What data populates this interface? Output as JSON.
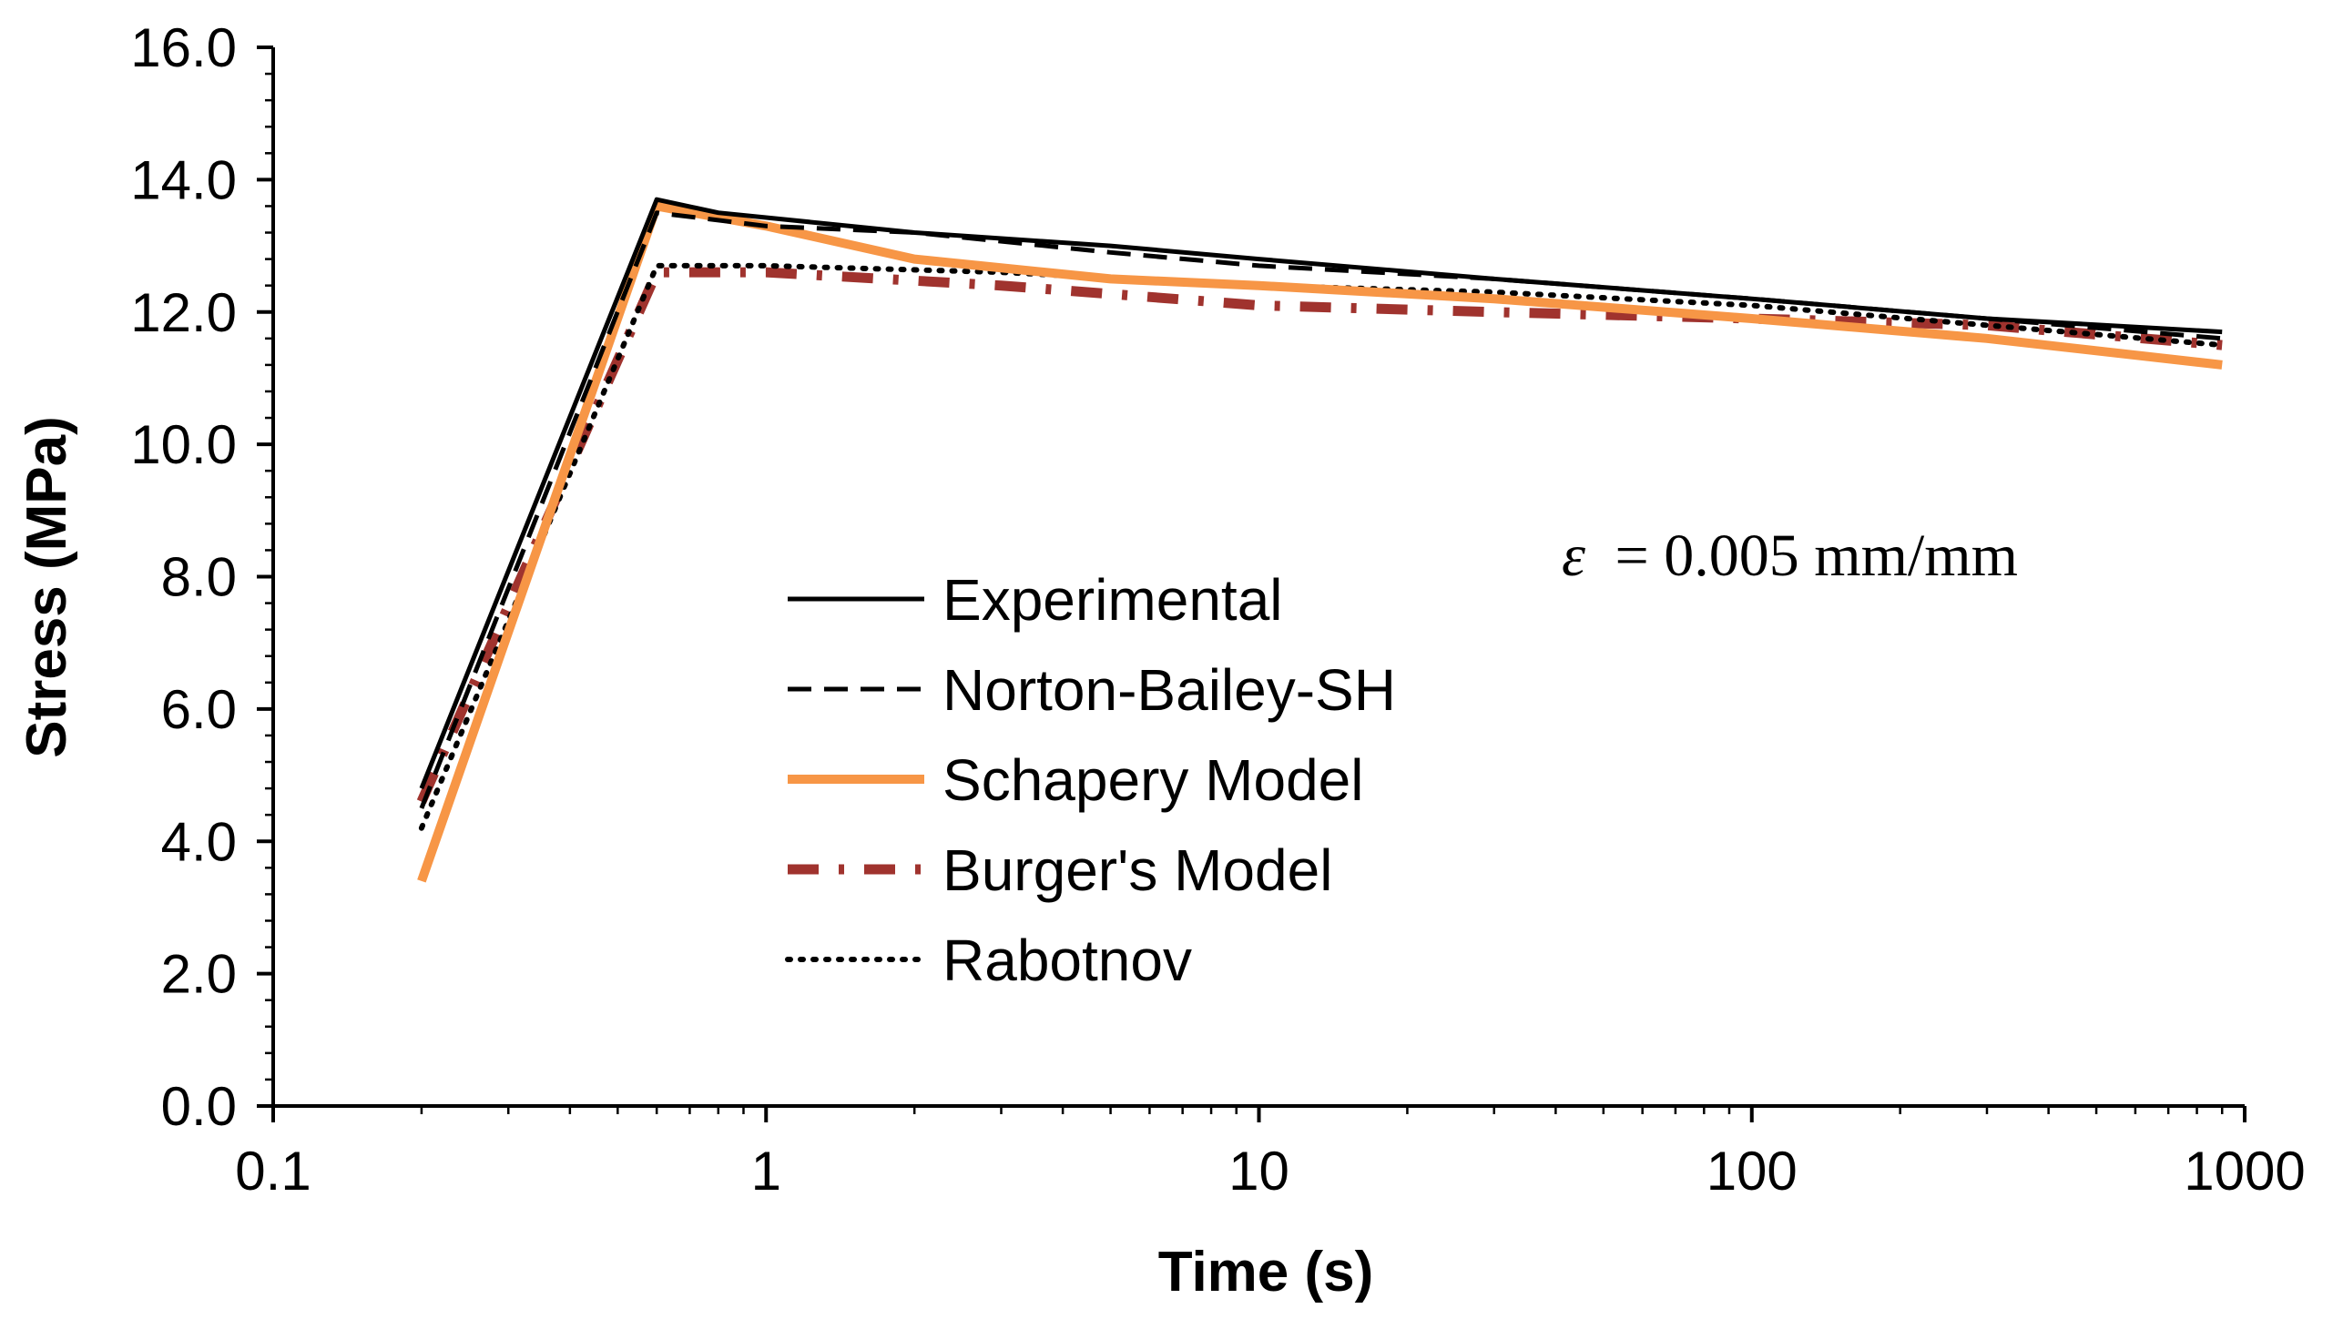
{
  "chart_data": {
    "type": "line",
    "x_scale": "log",
    "xlabel": "Time (s)",
    "ylabel": "Stress (MPa)",
    "xlim": [
      0.1,
      1000
    ],
    "ylim": [
      0,
      16
    ],
    "x_ticks": [
      0.1,
      1,
      10,
      100,
      1000
    ],
    "x_tick_labels": [
      "0.1",
      "1",
      "10",
      "100",
      "1000"
    ],
    "y_ticks": [
      0,
      2,
      4,
      6,
      8,
      10,
      12,
      14,
      16
    ],
    "y_tick_labels": [
      "0.0",
      "2.0",
      "4.0",
      "6.0",
      "8.0",
      "10.0",
      "12.0",
      "14.0",
      "16.0"
    ],
    "legend_position": "center-left",
    "annotation": {
      "symbol": "ε",
      "text": "= 0.005 mm/mm"
    },
    "series": [
      {
        "name": "Experimental",
        "style": "solid",
        "color": "#000000",
        "x": [
          0.2,
          0.6,
          0.8,
          2,
          5,
          10,
          30,
          100,
          300,
          900
        ],
        "y": [
          4.8,
          13.7,
          13.5,
          13.2,
          13.0,
          12.8,
          12.5,
          12.2,
          11.9,
          11.7
        ]
      },
      {
        "name": "Norton-Bailey-SH",
        "style": "dashed",
        "color": "#000000",
        "x": [
          0.2,
          0.6,
          1,
          2,
          5,
          10,
          30,
          100,
          300,
          900
        ],
        "y": [
          4.5,
          13.5,
          13.3,
          13.2,
          12.9,
          12.7,
          12.5,
          12.2,
          11.9,
          11.6
        ]
      },
      {
        "name": "Schapery Model",
        "style": "solid-thick",
        "color": "#f79646",
        "x": [
          0.2,
          0.6,
          1,
          2,
          5,
          10,
          30,
          100,
          300,
          900
        ],
        "y": [
          3.4,
          13.6,
          13.3,
          12.8,
          12.5,
          12.4,
          12.2,
          11.9,
          11.6,
          11.2
        ]
      },
      {
        "name": "Burger's Model",
        "style": "dash-dot",
        "color": "#a0332e",
        "x": [
          0.2,
          0.6,
          1,
          3,
          10,
          30,
          100,
          300,
          900
        ],
        "y": [
          4.6,
          12.6,
          12.6,
          12.4,
          12.1,
          12.0,
          11.9,
          11.8,
          11.5
        ]
      },
      {
        "name": "Rabotnov",
        "style": "dotted",
        "color": "#000000",
        "x": [
          0.2,
          0.6,
          1,
          3,
          10,
          30,
          100,
          300,
          900
        ],
        "y": [
          4.2,
          12.7,
          12.7,
          12.6,
          12.4,
          12.3,
          12.1,
          11.8,
          11.5
        ]
      }
    ]
  }
}
